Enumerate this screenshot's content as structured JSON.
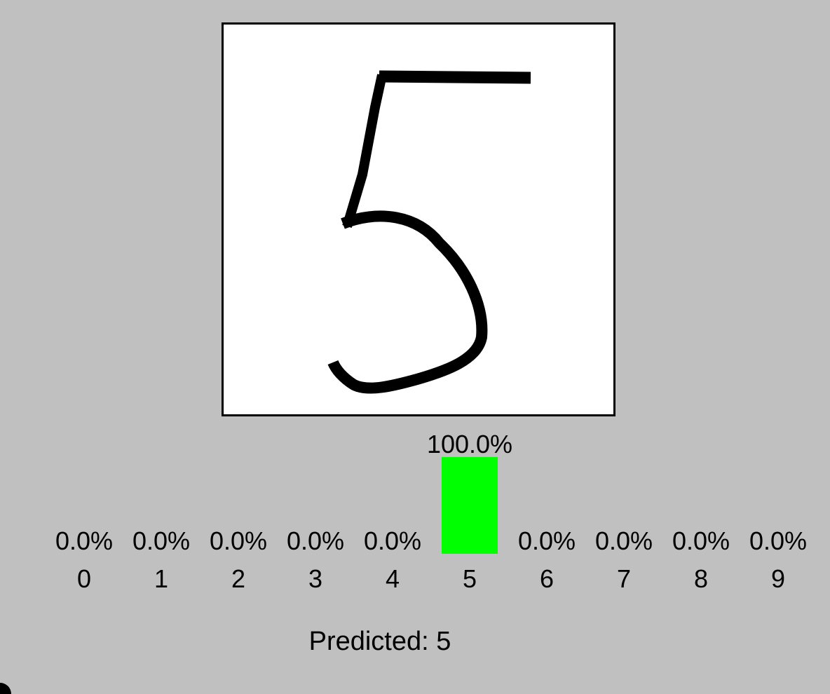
{
  "drawing": {
    "digit_drawn": "5"
  },
  "chart_data": {
    "type": "bar",
    "categories": [
      "0",
      "1",
      "2",
      "3",
      "4",
      "5",
      "6",
      "7",
      "8",
      "9"
    ],
    "values": [
      0.0,
      0.0,
      0.0,
      0.0,
      0.0,
      100.0,
      0.0,
      0.0,
      0.0,
      0.0
    ],
    "value_labels": [
      "0.0%",
      "0.0%",
      "0.0%",
      "0.0%",
      "0.0%",
      "100.0%",
      "0.0%",
      "0.0%",
      "0.0%",
      "0.0%"
    ],
    "ylim": [
      0,
      100
    ],
    "bar_color": "#00ff00",
    "title": "",
    "xlabel": "",
    "ylabel": ""
  },
  "prediction": {
    "text": "Predicted: 5"
  },
  "colors": {
    "background": "#c0c0c0",
    "canvas": "#ffffff",
    "stroke": "#000000"
  }
}
